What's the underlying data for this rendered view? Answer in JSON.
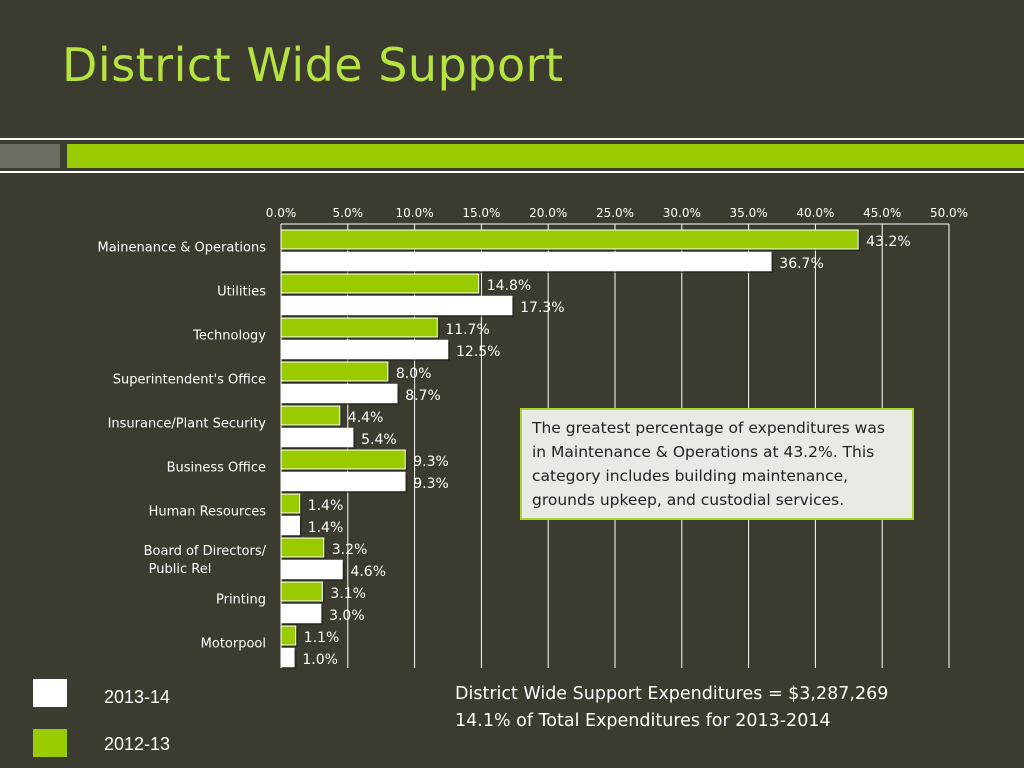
{
  "slide": {
    "title": "District Wide Support"
  },
  "colors": {
    "background": "#3c3b30",
    "accent_green": "#99cc00",
    "title_green": "#b6e33f",
    "white_bar": "#ffffff",
    "gray_block": "#6e6c64"
  },
  "chart_data": {
    "type": "bar",
    "orientation": "horizontal",
    "categories": [
      "Mainenance & Operations",
      "Utilities",
      "Technology",
      "Superintendent's Office",
      "Insurance/Plant Security",
      "Business Office",
      "Human Resources",
      "Board of Directors/Public Rel",
      "Printing",
      "Motorpool"
    ],
    "series": [
      {
        "name": "2012-13",
        "color": "#99cc00",
        "values": [
          43.2,
          14.8,
          11.7,
          8.0,
          4.4,
          9.3,
          1.4,
          3.2,
          3.1,
          1.1
        ],
        "labels": [
          "43.2%",
          "14.8%",
          "11.7%",
          "8.0%",
          "4.4%",
          "9.3%",
          "1.4%",
          "3.2%",
          "3.1%",
          "1.1%"
        ]
      },
      {
        "name": "2013-14",
        "color": "#ffffff",
        "values": [
          36.7,
          17.3,
          12.5,
          8.7,
          5.4,
          9.3,
          1.4,
          4.6,
          3.0,
          1.0
        ],
        "labels": [
          "36.7%",
          "17.3%",
          "12.5%",
          "8.7%",
          "5.4%",
          "9.3%",
          "1.4%",
          "4.6%",
          "3.0%",
          "1.0%"
        ]
      }
    ],
    "x_ticks": [
      "0.0%",
      "5.0%",
      "10.0%",
      "15.0%",
      "20.0%",
      "25.0%",
      "30.0%",
      "35.0%",
      "40.0%",
      "45.0%",
      "50.0%"
    ],
    "xlim": [
      0,
      50
    ],
    "axis_position": "top",
    "grid": true,
    "legend_position": "bottom-left"
  },
  "callout": {
    "text": "The greatest percentage of expenditures was in Maintenance & Operations at 43.2%. This category includes building maintenance, grounds upkeep, and custodial services."
  },
  "legend": {
    "items": [
      {
        "label": "2013-14",
        "color": "#ffffff"
      },
      {
        "label": "2012-13",
        "color": "#99cc00"
      }
    ]
  },
  "summary": {
    "line1": "District Wide Support Expenditures =  $3,287,269",
    "line2": "14.1% of Total Expenditures for 2013-2014"
  }
}
